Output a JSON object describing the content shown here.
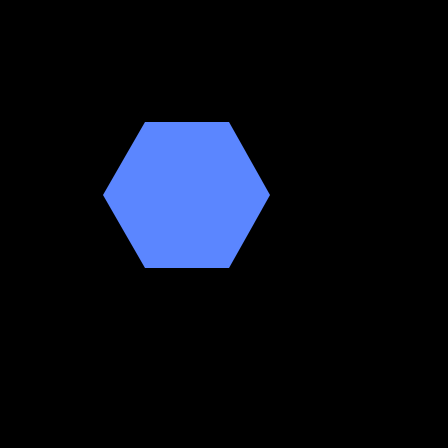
{
  "scene": {
    "background_color": "#000000",
    "shape": {
      "type": "hexagon",
      "fill_color": "#5b86ff"
    }
  }
}
